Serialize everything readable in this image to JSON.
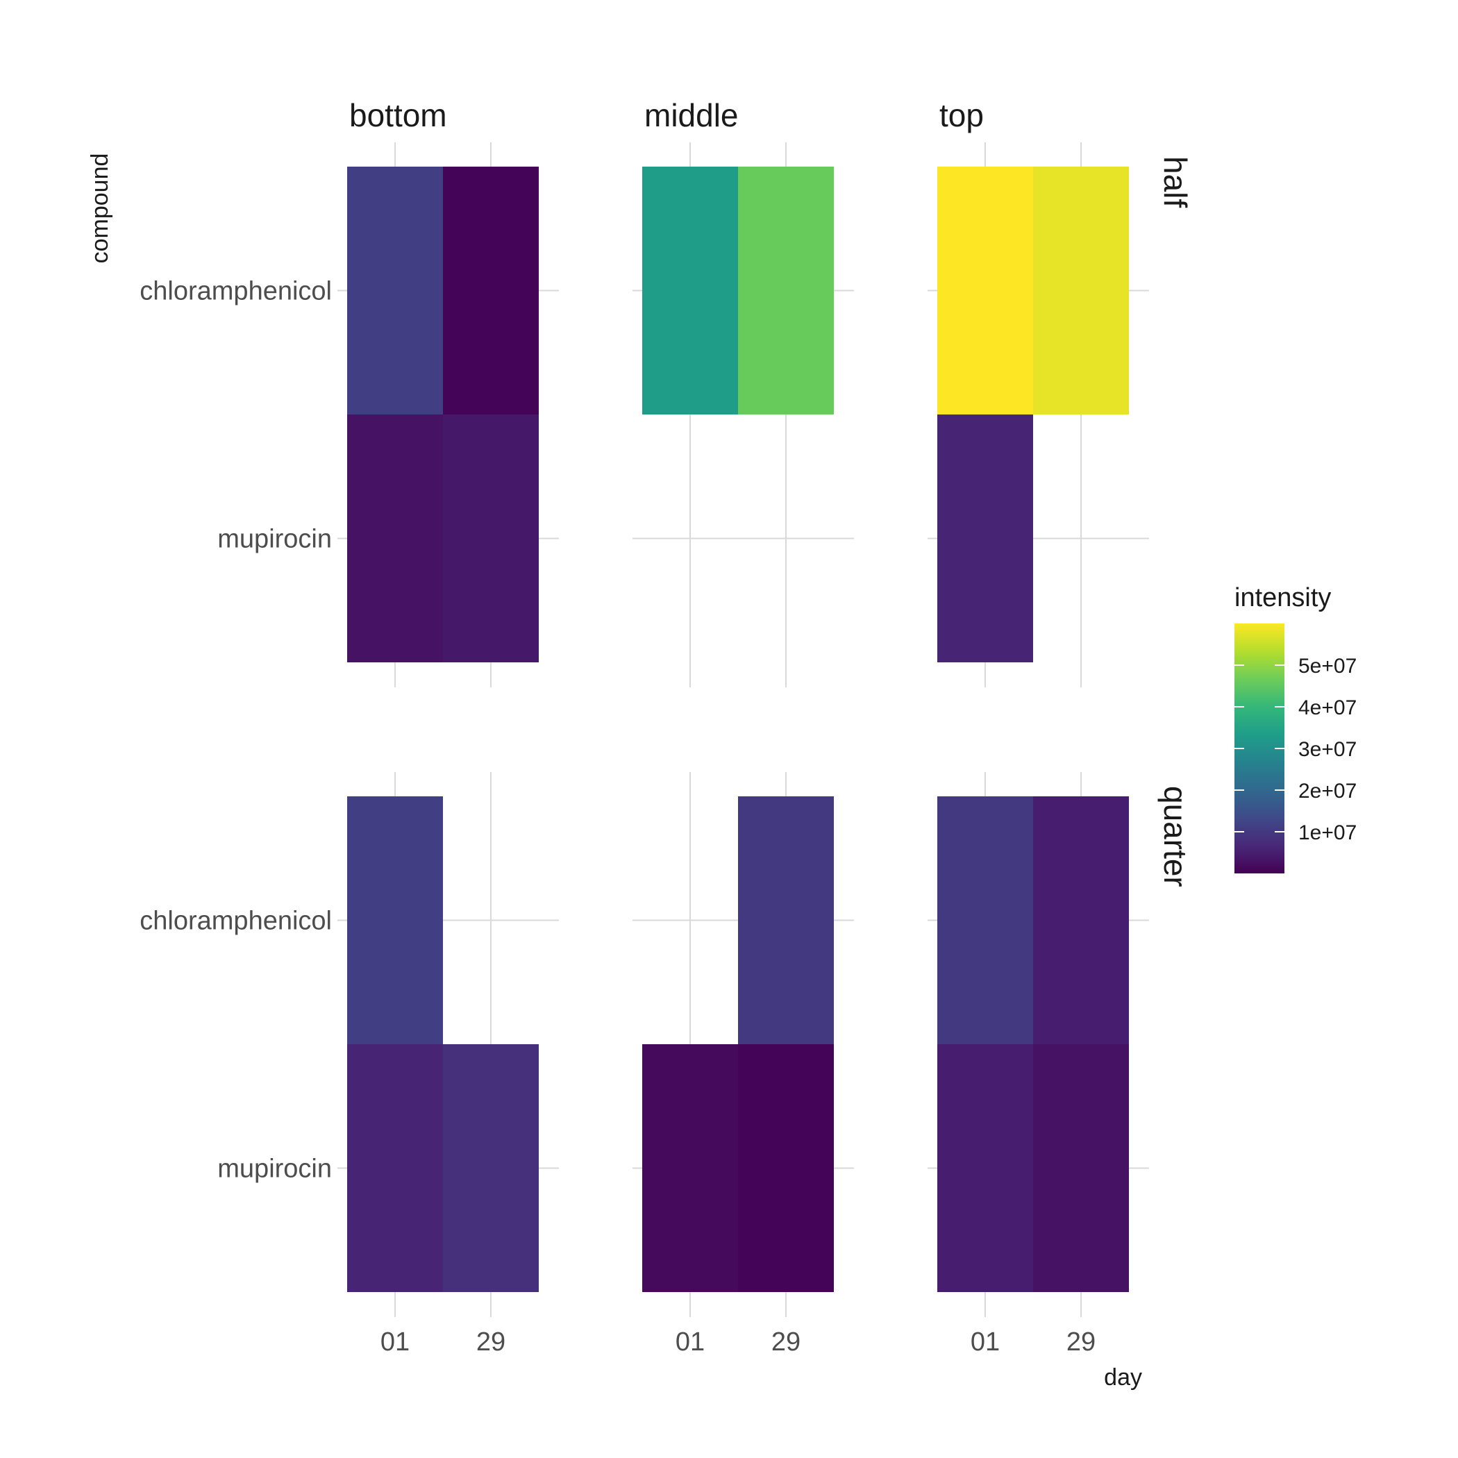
{
  "chart_data": {
    "type": "heatmap",
    "xlabel": "day",
    "ylabel": "compound",
    "x_categories": [
      "01",
      "29"
    ],
    "y_categories": [
      "chloramphenicol",
      "mupirocin"
    ],
    "col_facets": [
      "bottom",
      "middle",
      "top"
    ],
    "row_facets": [
      "half",
      "quarter"
    ],
    "legend": {
      "title": "intensity",
      "placement": "right",
      "min": 0,
      "max": 60000000,
      "breaks": [
        10000000,
        20000000,
        30000000,
        40000000,
        50000000
      ],
      "break_labels": [
        "1e+07",
        "2e+07",
        "3e+07",
        "4e+07",
        "5e+07"
      ],
      "palette": [
        "#440154",
        "#482878",
        "#3E4A89",
        "#31688E",
        "#26828E",
        "#1F9E89",
        "#35B779",
        "#6DCD59",
        "#B4DE2C",
        "#FDE725"
      ]
    },
    "grid": true,
    "cells": [
      {
        "row_facet": "half",
        "col_facet": "bottom",
        "day": "01",
        "compound": "chloramphenicol",
        "intensity": 11000000
      },
      {
        "row_facet": "half",
        "col_facet": "bottom",
        "day": "29",
        "compound": "chloramphenicol",
        "intensity": 500000
      },
      {
        "row_facet": "half",
        "col_facet": "bottom",
        "day": "01",
        "compound": "mupirocin",
        "intensity": 3000000
      },
      {
        "row_facet": "half",
        "col_facet": "bottom",
        "day": "29",
        "compound": "mupirocin",
        "intensity": 4000000
      },
      {
        "row_facet": "half",
        "col_facet": "middle",
        "day": "01",
        "compound": "chloramphenicol",
        "intensity": 33000000
      },
      {
        "row_facet": "half",
        "col_facet": "middle",
        "day": "29",
        "compound": "chloramphenicol",
        "intensity": 46000000
      },
      {
        "row_facet": "half",
        "col_facet": "top",
        "day": "01",
        "compound": "chloramphenicol",
        "intensity": 60000000
      },
      {
        "row_facet": "half",
        "col_facet": "top",
        "day": "29",
        "compound": "chloramphenicol",
        "intensity": 58000000
      },
      {
        "row_facet": "half",
        "col_facet": "top",
        "day": "01",
        "compound": "mupirocin",
        "intensity": 6000000
      },
      {
        "row_facet": "quarter",
        "col_facet": "bottom",
        "day": "01",
        "compound": "chloramphenicol",
        "intensity": 11000000
      },
      {
        "row_facet": "quarter",
        "col_facet": "bottom",
        "day": "01",
        "compound": "mupirocin",
        "intensity": 6000000
      },
      {
        "row_facet": "quarter",
        "col_facet": "bottom",
        "day": "29",
        "compound": "mupirocin",
        "intensity": 8000000
      },
      {
        "row_facet": "quarter",
        "col_facet": "middle",
        "day": "29",
        "compound": "chloramphenicol",
        "intensity": 10000000
      },
      {
        "row_facet": "quarter",
        "col_facet": "middle",
        "day": "01",
        "compound": "mupirocin",
        "intensity": 1500000
      },
      {
        "row_facet": "quarter",
        "col_facet": "middle",
        "day": "29",
        "compound": "mupirocin",
        "intensity": 700000
      },
      {
        "row_facet": "quarter",
        "col_facet": "top",
        "day": "01",
        "compound": "chloramphenicol",
        "intensity": 10000000
      },
      {
        "row_facet": "quarter",
        "col_facet": "top",
        "day": "29",
        "compound": "chloramphenicol",
        "intensity": 5000000
      },
      {
        "row_facet": "quarter",
        "col_facet": "top",
        "day": "01",
        "compound": "mupirocin",
        "intensity": 5000000
      },
      {
        "row_facet": "quarter",
        "col_facet": "top",
        "day": "29",
        "compound": "mupirocin",
        "intensity": 3000000
      }
    ]
  }
}
